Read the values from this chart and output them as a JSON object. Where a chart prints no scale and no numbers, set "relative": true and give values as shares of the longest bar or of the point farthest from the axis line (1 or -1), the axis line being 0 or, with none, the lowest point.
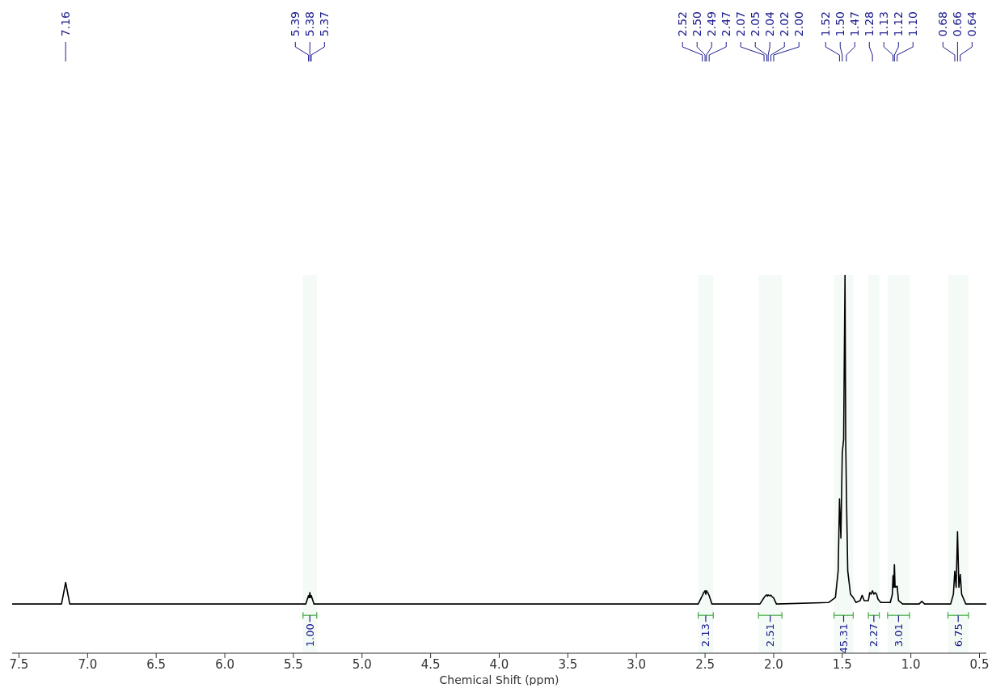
{
  "chart_data": {
    "type": "line",
    "relative": true,
    "xlabel": "Chemical Shift (ppm)",
    "xlim": [
      7.55,
      0.45
    ],
    "xticks": [
      {
        "value": 7.5,
        "label": "7.5"
      },
      {
        "value": 7.0,
        "label": "7.0"
      },
      {
        "value": 6.5,
        "label": "6.5"
      },
      {
        "value": 6.0,
        "label": "6.0"
      },
      {
        "value": 5.5,
        "label": "5.5"
      },
      {
        "value": 5.0,
        "label": "5.0"
      },
      {
        "value": 4.5,
        "label": "4.5"
      },
      {
        "value": 4.0,
        "label": "4.0"
      },
      {
        "value": 3.5,
        "label": "3.5"
      },
      {
        "value": 3.0,
        "label": "3.0"
      },
      {
        "value": 2.5,
        "label": "2.5"
      },
      {
        "value": 2.0,
        "label": "2.0"
      },
      {
        "value": 1.5,
        "label": "1.5"
      },
      {
        "value": 1.0,
        "label": "1.0"
      },
      {
        "value": 0.5,
        "label": "0.5"
      }
    ],
    "series": [
      {
        "color": "#000000",
        "x": [
          7.55,
          7.19,
          7.16,
          7.13,
          5.41,
          5.39,
          5.385,
          5.38,
          5.375,
          5.37,
          5.35,
          2.55,
          2.52,
          2.51,
          2.5,
          2.495,
          2.49,
          2.48,
          2.47,
          2.45,
          2.1,
          2.07,
          2.06,
          2.05,
          2.045,
          2.04,
          2.03,
          2.02,
          2.01,
          2.0,
          1.98,
          1.6,
          1.55,
          1.53,
          1.52,
          1.51,
          1.5,
          1.49,
          1.48,
          1.475,
          1.47,
          1.46,
          1.44,
          1.42,
          1.4,
          1.37,
          1.355,
          1.34,
          1.31,
          1.3,
          1.29,
          1.28,
          1.27,
          1.26,
          1.25,
          1.24,
          1.22,
          1.15,
          1.135,
          1.13,
          1.125,
          1.12,
          1.115,
          1.1,
          1.09,
          1.06,
          0.94,
          0.92,
          0.9,
          0.71,
          0.69,
          0.68,
          0.67,
          0.66,
          0.65,
          0.64,
          0.63,
          0.6,
          0.45
        ],
        "values": [
          0.13,
          0.13,
          0.187,
          0.13,
          0.13,
          0.152,
          0.147,
          0.16,
          0.147,
          0.152,
          0.13,
          0.13,
          0.152,
          0.16,
          0.165,
          0.156,
          0.165,
          0.16,
          0.152,
          0.13,
          0.13,
          0.147,
          0.152,
          0.154,
          0.151,
          0.154,
          0.152,
          0.153,
          0.149,
          0.146,
          0.13,
          0.134,
          0.147,
          0.217,
          0.408,
          0.304,
          0.53,
          0.565,
          1.0,
          0.565,
          0.426,
          0.217,
          0.156,
          0.147,
          0.134,
          0.139,
          0.153,
          0.139,
          0.139,
          0.16,
          0.156,
          0.165,
          0.156,
          0.16,
          0.156,
          0.143,
          0.134,
          0.134,
          0.156,
          0.205,
          0.174,
          0.234,
          0.174,
          0.177,
          0.139,
          0.13,
          0.13,
          0.137,
          0.13,
          0.13,
          0.156,
          0.217,
          0.174,
          0.321,
          0.174,
          0.208,
          0.156,
          0.13,
          0.13
        ]
      }
    ],
    "annotations": [
      {
        "text": "7.16",
        "x": 7.16
      },
      {
        "text": "5.39",
        "x": 5.39
      },
      {
        "text": "5.38",
        "x": 5.38
      },
      {
        "text": "5.37",
        "x": 5.37
      },
      {
        "text": "2.52",
        "x": 2.52
      },
      {
        "text": "2.50",
        "x": 2.5
      },
      {
        "text": "2.49",
        "x": 2.49
      },
      {
        "text": "2.47",
        "x": 2.47
      },
      {
        "text": "2.07",
        "x": 2.07
      },
      {
        "text": "2.05",
        "x": 2.05
      },
      {
        "text": "2.04",
        "x": 2.04
      },
      {
        "text": "2.02",
        "x": 2.02
      },
      {
        "text": "2.00",
        "x": 2.0
      },
      {
        "text": "1.52",
        "x": 1.52
      },
      {
        "text": "1.50",
        "x": 1.5
      },
      {
        "text": "1.47",
        "x": 1.47
      },
      {
        "text": "1.28",
        "x": 1.28
      },
      {
        "text": "1.13",
        "x": 1.13
      },
      {
        "text": "1.12",
        "x": 1.12
      },
      {
        "text": "1.10",
        "x": 1.1
      },
      {
        "text": "0.68",
        "x": 0.68
      },
      {
        "text": "0.66",
        "x": 0.66
      },
      {
        "text": "0.64",
        "x": 0.64
      }
    ],
    "bands": [
      {
        "axis": "x",
        "from": 5.43,
        "to": 5.33,
        "label": "1.00",
        "color": "#4caf50"
      },
      {
        "axis": "x",
        "from": 2.55,
        "to": 2.44,
        "label": "2.13",
        "color": "#4caf50"
      },
      {
        "axis": "x",
        "from": 2.11,
        "to": 1.94,
        "label": "2.51",
        "color": "#4caf50"
      },
      {
        "axis": "x",
        "from": 1.56,
        "to": 1.42,
        "label": "45.31",
        "color": "#4caf50"
      },
      {
        "axis": "x",
        "from": 1.31,
        "to": 1.23,
        "label": "2.27",
        "color": "#4caf50"
      },
      {
        "axis": "x",
        "from": 1.17,
        "to": 1.01,
        "label": "3.01",
        "color": "#4caf50"
      },
      {
        "axis": "x",
        "from": 0.73,
        "to": 0.58,
        "label": "6.75",
        "color": "#4caf50"
      }
    ]
  }
}
